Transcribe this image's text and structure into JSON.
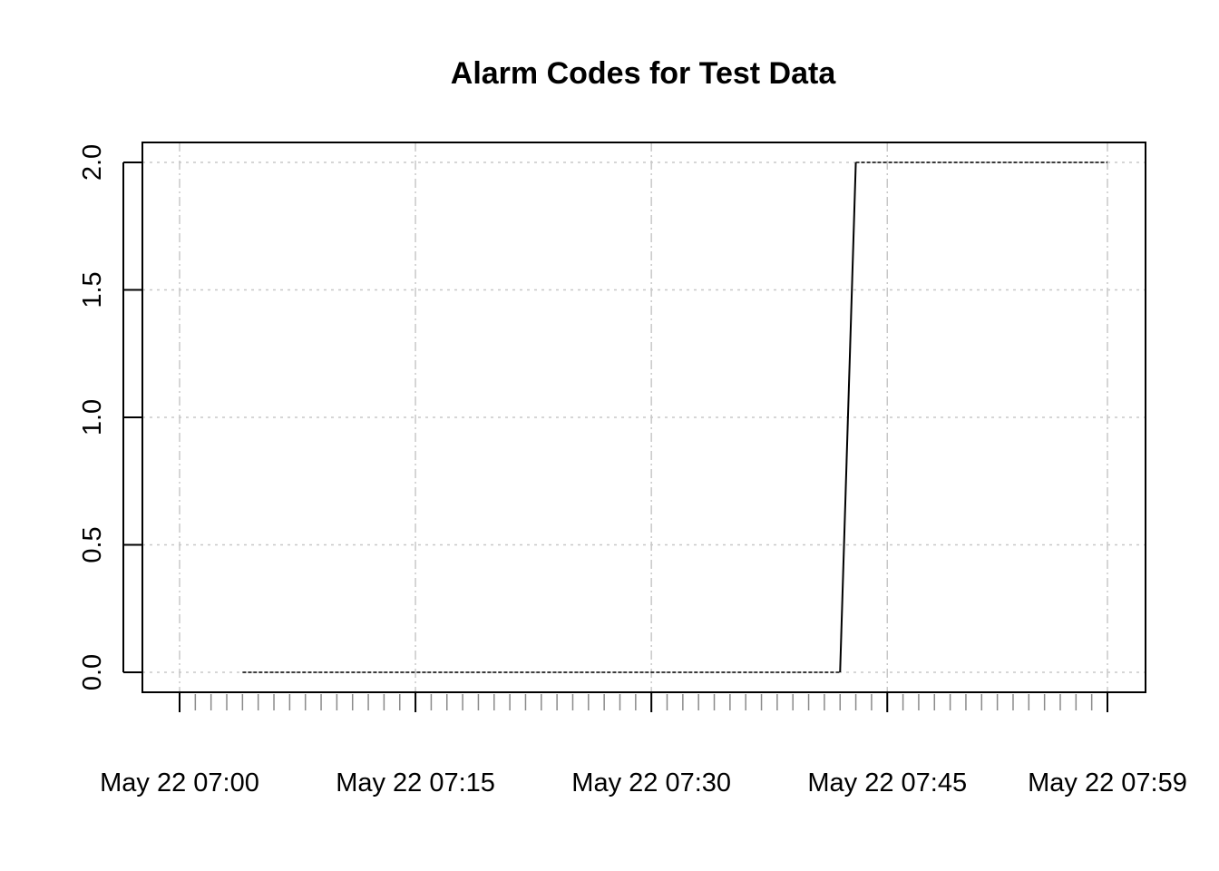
{
  "chart_data": {
    "type": "line",
    "title": "Alarm Codes for Test Data",
    "xlabel": "",
    "ylabel": "",
    "x_tick_labels": [
      "May 22 07:00",
      "May 22 07:15",
      "May 22 07:30",
      "May 22 07:45",
      "May 22 07:59"
    ],
    "y_tick_labels": [
      "0.0",
      "0.5",
      "1.0",
      "1.5",
      "2.0"
    ],
    "ylim": [
      0,
      2
    ],
    "grid": true,
    "series": [
      {
        "x": [
          "May 22 07:04",
          "May 22 07:42",
          "May 22 07:43",
          "May 22 07:59"
        ],
        "y": [
          0,
          0,
          2,
          2
        ]
      }
    ]
  }
}
